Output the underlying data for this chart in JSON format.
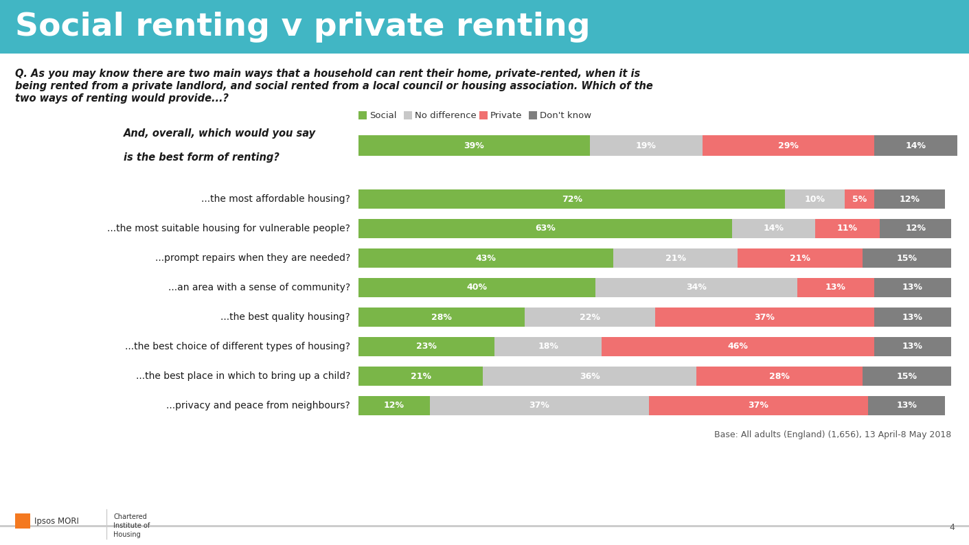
{
  "title": "Social renting v private renting",
  "title_bg": "#41b6c4",
  "question_text_line1": "Q. As you may know there are two main ways that a household can rent their home, private-rented, when it is",
  "question_text_line2": "being rented from a private landlord, and social rented from a local council or housing association. Which of the",
  "question_text_line3": "two ways of renting would provide...?",
  "base_text": "Base: All adults (England) (1,656), 13 April-8 May 2018",
  "page_num": "4",
  "colors": {
    "social": "#7ab648",
    "no_diff": "#c8c8c8",
    "private": "#f07070",
    "dont_know": "#7f7f7f",
    "title_bg": "#41b6c4",
    "bg": "#ffffff",
    "border_left": "#1f3864",
    "text_dark": "#1a1a1a",
    "text_mid": "#404040"
  },
  "legend": [
    {
      "label": "Social",
      "color": "#7ab648"
    },
    {
      "label": "No difference",
      "color": "#c8c8c8"
    },
    {
      "label": "Private",
      "color": "#f07070"
    },
    {
      "label": "Don't know",
      "color": "#7f7f7f"
    }
  ],
  "rows": [
    {
      "label_line1": "And, overall, which would you say",
      "label_line2": "is the best form of renting?",
      "is_overall": true,
      "social": 39,
      "no_diff": 19,
      "private": 29,
      "dont_know": 14
    },
    {
      "label_line1": "...the most affordable housing?",
      "label_line2": "",
      "is_overall": false,
      "social": 72,
      "no_diff": 10,
      "private": 5,
      "dont_know": 12
    },
    {
      "label_line1": "...the most suitable housing for vulnerable people?",
      "label_line2": "",
      "is_overall": false,
      "social": 63,
      "no_diff": 14,
      "private": 11,
      "dont_know": 12
    },
    {
      "label_line1": "...prompt repairs when they are needed?",
      "label_line2": "",
      "is_overall": false,
      "social": 43,
      "no_diff": 21,
      "private": 21,
      "dont_know": 15
    },
    {
      "label_line1": "...an area with a sense of community?",
      "label_line2": "",
      "is_overall": false,
      "social": 40,
      "no_diff": 34,
      "private": 13,
      "dont_know": 13
    },
    {
      "label_line1": "...the best quality housing?",
      "label_line2": "",
      "is_overall": false,
      "social": 28,
      "no_diff": 22,
      "private": 37,
      "dont_know": 13
    },
    {
      "label_line1": "...the best choice of different types of housing?",
      "label_line2": "",
      "is_overall": false,
      "social": 23,
      "no_diff": 18,
      "private": 46,
      "dont_know": 13
    },
    {
      "label_line1": "...the best place in which to bring up a child?",
      "label_line2": "",
      "is_overall": false,
      "social": 21,
      "no_diff": 36,
      "private": 28,
      "dont_know": 15
    },
    {
      "label_line1": "...privacy and peace from neighbours?",
      "label_line2": "",
      "is_overall": false,
      "social": 12,
      "no_diff": 37,
      "private": 37,
      "dont_know": 13
    }
  ]
}
